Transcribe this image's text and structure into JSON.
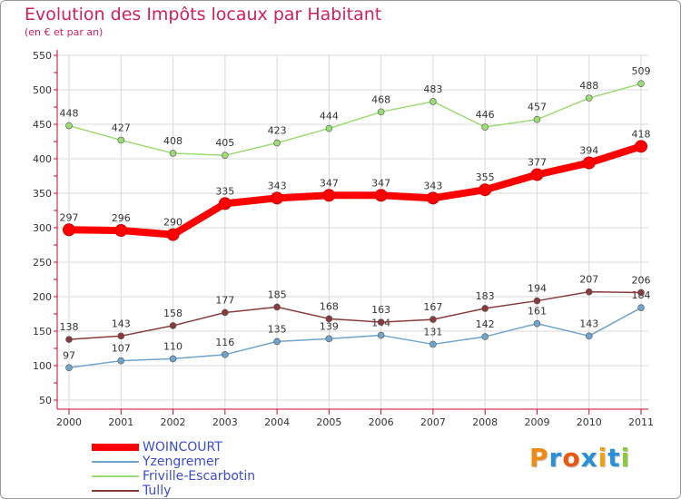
{
  "header": {
    "title": "Evolution des Impôts locaux par Habitant",
    "subtitle": "(en € et par an)"
  },
  "logo": {
    "text": "Proxiti",
    "letter_colors": [
      "#f08a14",
      "#2a8fd8",
      "#e85a14",
      "#2a8fd8",
      "#f0a014",
      "#2a8fd8",
      "#8cc83c"
    ]
  },
  "colors": {
    "title": "#d21f5e",
    "axis": "#c80a2d",
    "grid": "#d8d8d8",
    "legend_text": "#3a4cd6"
  },
  "chart_data": {
    "type": "line",
    "title": "Evolution des Impôts locaux par Habitant",
    "subtitle": "(en € et par an)",
    "xlabel": "",
    "ylabel": "",
    "ylim": [
      50,
      550
    ],
    "yticks": [
      50,
      100,
      150,
      200,
      250,
      300,
      350,
      400,
      450,
      500,
      550
    ],
    "grid": true,
    "categories": [
      "2000",
      "2001",
      "2002",
      "2003",
      "2004",
      "2005",
      "2006",
      "2007",
      "2008",
      "2009",
      "2010",
      "2011"
    ],
    "legend_position": "bottom-left",
    "series": [
      {
        "name": "WOINCOURT",
        "color": "#ff0000",
        "emphasis": true,
        "values": [
          297,
          296,
          290,
          335,
          343,
          347,
          347,
          343,
          355,
          377,
          394,
          418
        ]
      },
      {
        "name": "Yzengremer",
        "color": "#6fa4cd",
        "emphasis": false,
        "values": [
          97,
          107,
          110,
          116,
          135,
          139,
          144,
          131,
          142,
          161,
          143,
          184
        ]
      },
      {
        "name": "Friville-Escarbotin",
        "color": "#9bdb74",
        "emphasis": false,
        "values": [
          448,
          427,
          408,
          405,
          423,
          444,
          468,
          483,
          446,
          457,
          488,
          509
        ]
      },
      {
        "name": "Tully",
        "color": "#8a3a3a",
        "emphasis": false,
        "values": [
          138,
          143,
          158,
          177,
          185,
          168,
          163,
          167,
          183,
          194,
          207,
          206
        ]
      }
    ]
  }
}
